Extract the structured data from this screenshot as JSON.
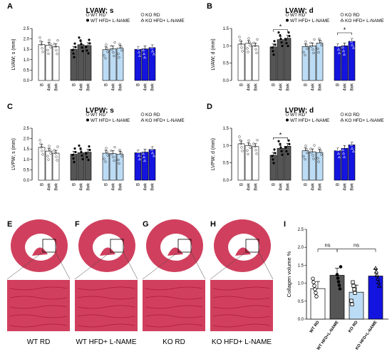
{
  "colors": {
    "wt_rd": "#ffffff",
    "wt_hfd": "#555555",
    "ko_rd": "#bcdcf5",
    "ko_hfd": "#1414e0",
    "stain": "#d0405e",
    "stain_dark": "#b0183a"
  },
  "legend": {
    "wt_rd": "WT RD",
    "ko_rd": "KO RD",
    "wt_hfd": "WT HFD+ L-NAME",
    "ko_hfd": "KO HFD+ L-NAME"
  },
  "xticks": [
    "B",
    "4wk",
    "8wk"
  ],
  "chart_data": [
    {
      "panel": "A",
      "type": "bar",
      "title": "LVAW; s",
      "ylabel": "LVAW; s (mm)",
      "ylim": [
        0,
        2.5
      ],
      "yticks": [
        "0.0",
        "0.5",
        "1.0",
        "1.5",
        "2.0",
        "2.5"
      ],
      "ytick_values": [
        0,
        0.5,
        1.0,
        1.5,
        2.0,
        2.5
      ],
      "series": [
        {
          "key": "wt_rd",
          "values": [
            1.72,
            1.7,
            1.62
          ]
        },
        {
          "key": "wt_hfd",
          "values": [
            1.5,
            1.72,
            1.68
          ]
        },
        {
          "key": "ko_rd",
          "values": [
            1.48,
            1.52,
            1.55
          ]
        },
        {
          "key": "ko_hfd",
          "values": [
            1.5,
            1.52,
            1.58
          ]
        }
      ],
      "significance": []
    },
    {
      "panel": "B",
      "type": "bar",
      "title": "LVAW; d",
      "ylabel": "LVAW; d (mm)",
      "ylim": [
        0,
        1.5
      ],
      "yticks": [
        "0.0",
        "0.5",
        "1.0",
        "1.5"
      ],
      "ytick_values": [
        0,
        0.5,
        1.0,
        1.5
      ],
      "series": [
        {
          "key": "wt_rd",
          "values": [
            1.05,
            1.07,
            1.0
          ]
        },
        {
          "key": "wt_hfd",
          "values": [
            0.97,
            1.18,
            1.22
          ]
        },
        {
          "key": "ko_rd",
          "values": [
            0.98,
            1.0,
            1.08
          ]
        },
        {
          "key": "ko_hfd",
          "values": [
            0.98,
            1.0,
            1.13
          ]
        }
      ],
      "significance": [
        {
          "group": 1,
          "from": 0,
          "to": 2,
          "label": "*"
        },
        {
          "group": 3,
          "from": 0,
          "to": 2,
          "label": "*"
        }
      ]
    },
    {
      "panel": "C",
      "type": "bar",
      "title": "LVPW; s",
      "ylabel": "LVPW; s (mm)",
      "ylim": [
        0,
        2.5
      ],
      "yticks": [
        "0.0",
        "0.5",
        "1.0",
        "1.5",
        "2.0",
        "2.5"
      ],
      "ytick_values": [
        0,
        0.5,
        1.0,
        1.5,
        2.0,
        2.5
      ],
      "series": [
        {
          "key": "wt_rd",
          "values": [
            1.58,
            1.4,
            1.3
          ]
        },
        {
          "key": "wt_hfd",
          "values": [
            1.25,
            1.32,
            1.35
          ]
        },
        {
          "key": "ko_rd",
          "values": [
            1.3,
            1.28,
            1.25
          ]
        },
        {
          "key": "ko_hfd",
          "values": [
            1.32,
            1.35,
            1.48
          ]
        }
      ],
      "significance": []
    },
    {
      "panel": "D",
      "type": "bar",
      "title": "LVPW; d",
      "ylabel": "LVPW; d (mm)",
      "ylim": [
        0,
        1.5
      ],
      "yticks": [
        "0.0",
        "0.5",
        "1.0",
        "1.5"
      ],
      "ytick_values": [
        0,
        0.5,
        1.0,
        1.5
      ],
      "series": [
        {
          "key": "wt_rd",
          "values": [
            1.05,
            1.0,
            0.97
          ]
        },
        {
          "key": "wt_hfd",
          "values": [
            0.72,
            0.92,
            0.98
          ]
        },
        {
          "key": "ko_rd",
          "values": [
            0.85,
            0.82,
            0.8
          ]
        },
        {
          "key": "ko_hfd",
          "values": [
            0.85,
            0.92,
            1.02
          ]
        }
      ],
      "significance": [
        {
          "group": 1,
          "from": 0,
          "to": 2,
          "label": "*"
        }
      ]
    },
    {
      "panel": "I",
      "type": "bar",
      "ylabel": "Collagen volume %",
      "ylim": [
        0,
        2.5
      ],
      "yticks": [
        "0.0",
        "0.5",
        "1.0",
        "1.5",
        "2.0",
        "2.5"
      ],
      "ytick_values": [
        0,
        0.5,
        1.0,
        1.5,
        2.0,
        2.5
      ],
      "categories": [
        "WT RD",
        "WT HFD+L-NAME",
        "KO RD",
        "KO HFD+L-NAME"
      ],
      "values": [
        0.85,
        1.22,
        0.75,
        1.2
      ],
      "significance": [
        {
          "from": 0,
          "to": 1,
          "label": "ns"
        },
        {
          "from": 1,
          "to": 3,
          "label": "ns"
        }
      ]
    }
  ],
  "histology": [
    {
      "panel": "E",
      "label": "WT RD"
    },
    {
      "panel": "F",
      "label": "WT HFD+ L-NAME"
    },
    {
      "panel": "G",
      "label": "KO RD"
    },
    {
      "panel": "H",
      "label": "KO HFD+ L-NAME"
    }
  ]
}
